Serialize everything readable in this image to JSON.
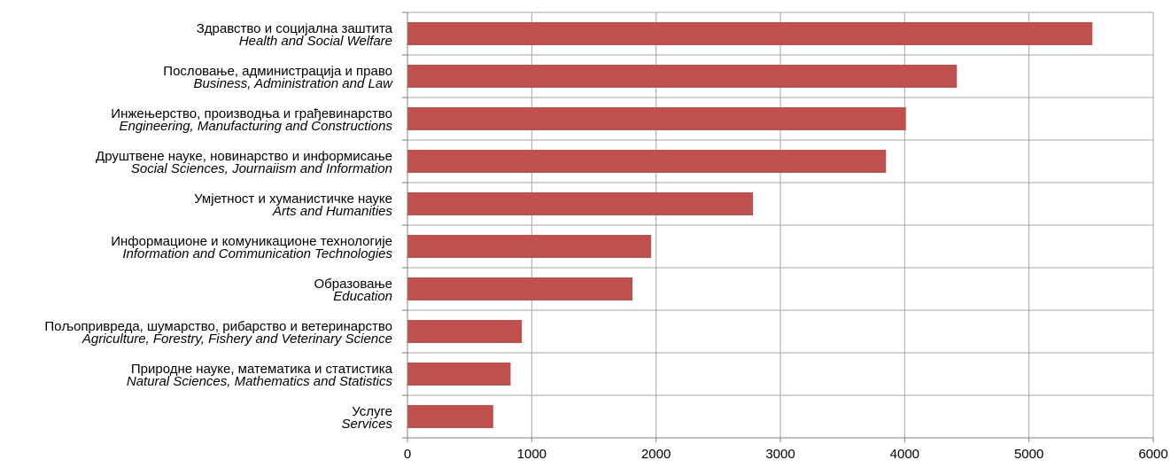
{
  "chart_data": {
    "type": "bar",
    "orientation": "horizontal",
    "title": "",
    "xlabel": "",
    "ylabel": "",
    "xlim": [
      0,
      6000
    ],
    "xticks": [
      0,
      1000,
      2000,
      3000,
      4000,
      5000,
      6000
    ],
    "grid": true,
    "legend": "none",
    "bar_color": "#c0504d",
    "categories": [
      {
        "sr": "Здравство и социјална заштита",
        "en": "Health and Social Welfare"
      },
      {
        "sr": "Пословање, администрација и право",
        "en": "Business, Administration and Law"
      },
      {
        "sr": "Инжењерство, производња и грађевинарство",
        "en": "Engineering, Manufacturing and Constructions"
      },
      {
        "sr": "Друштвене науке, новинарство и информисање",
        "en": "Social Sciences, Journaiism and Information"
      },
      {
        "sr": "Умјетност и хуманистичке науке",
        "en": "Arts and Humanities"
      },
      {
        "sr": "Информационе и комуникационе технологије",
        "en": "Information and Communication Technologies"
      },
      {
        "sr": "Образовање",
        "en": "Education"
      },
      {
        "sr": "Пољопривреда, шумарство, рибарство и ветеринарство",
        "en": "Agriculture, Forestry, Fishery and Veterinary Science"
      },
      {
        "sr": "Природне науке,  математика и  статистика",
        "en": "Natural Sciences, Mathematics and Statistics"
      },
      {
        "sr": "Услуге",
        "en": "Services"
      }
    ],
    "values": [
      5510,
      4420,
      4010,
      3850,
      2780,
      1960,
      1810,
      920,
      830,
      690
    ]
  }
}
